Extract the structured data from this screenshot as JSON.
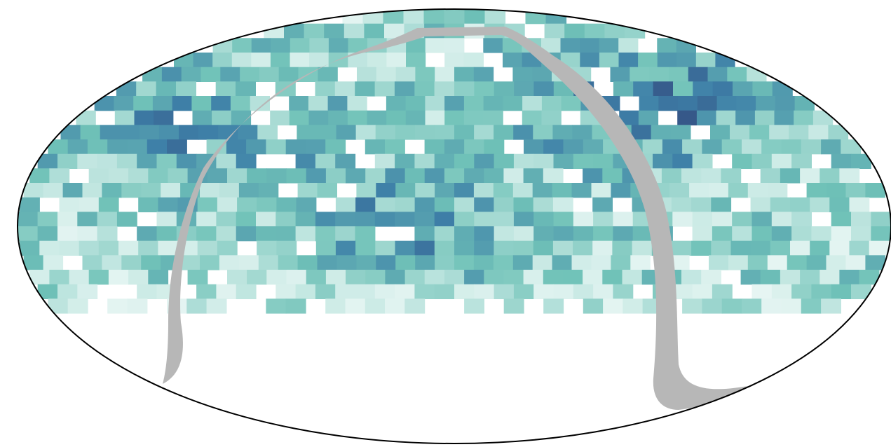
{
  "map": {
    "projection": "mollweide",
    "colormap": [
      "#ffffff",
      "#ccebe6",
      "#70c2b8",
      "#3e80a8",
      "#2a1c5a"
    ],
    "masked_band_color": "#b7b7b7",
    "outline_color": "#000000",
    "background_color": "#ffffff"
  }
}
